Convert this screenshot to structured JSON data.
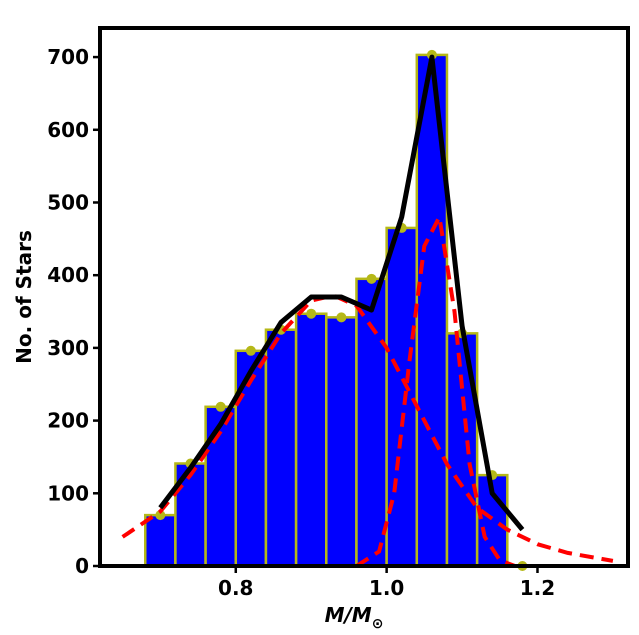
{
  "chart_data": {
    "type": "bar",
    "xlabel": "M/M",
    "xlabel_subscript": "⊙",
    "ylabel": "No. of Stars",
    "xlim": [
      0.62,
      1.32
    ],
    "ylim": [
      0,
      740
    ],
    "x_ticks": [
      0.8,
      1.0,
      1.2
    ],
    "x_tick_labels": [
      "0.8",
      "1.0",
      "1.2"
    ],
    "y_ticks": [
      0,
      100,
      200,
      300,
      400,
      500,
      600,
      700
    ],
    "y_tick_labels": [
      "0",
      "100",
      "200",
      "300",
      "400",
      "500",
      "600",
      "700"
    ],
    "bin_width": 0.04,
    "histogram": {
      "bin_centers": [
        0.7,
        0.74,
        0.78,
        0.82,
        0.86,
        0.9,
        0.94,
        0.98,
        1.02,
        1.06,
        1.1,
        1.14,
        1.18
      ],
      "counts": [
        70,
        141,
        219,
        296,
        325,
        347,
        342,
        395,
        465,
        703,
        320,
        125,
        0
      ],
      "fill_color": "#0000ff",
      "edge_color": "#b5b818"
    },
    "total_fit": {
      "color": "#000000",
      "x": [
        0.7,
        0.74,
        0.78,
        0.82,
        0.86,
        0.9,
        0.94,
        0.98,
        1.02,
        1.06,
        1.1,
        1.14,
        1.18
      ],
      "y": [
        80,
        135,
        195,
        268,
        335,
        370,
        370,
        352,
        480,
        700,
        330,
        100,
        50
      ]
    },
    "component_fits": [
      {
        "color": "#ff0000",
        "style": "dashed",
        "x": [
          0.65,
          0.7,
          0.74,
          0.78,
          0.82,
          0.86,
          0.9,
          0.93,
          0.96,
          1.0,
          1.04,
          1.08,
          1.12,
          1.16,
          1.2,
          1.24,
          1.3
        ],
        "y": [
          40,
          75,
          125,
          185,
          255,
          320,
          365,
          372,
          358,
          300,
          220,
          140,
          80,
          50,
          30,
          18,
          7
        ]
      },
      {
        "color": "#ff0000",
        "style": "dashed",
        "x": [
          0.96,
          0.99,
          1.01,
          1.03,
          1.05,
          1.07,
          1.09,
          1.11,
          1.13,
          1.15,
          1.17
        ],
        "y": [
          0,
          20,
          100,
          280,
          440,
          480,
          350,
          140,
          40,
          8,
          0
        ]
      }
    ]
  }
}
